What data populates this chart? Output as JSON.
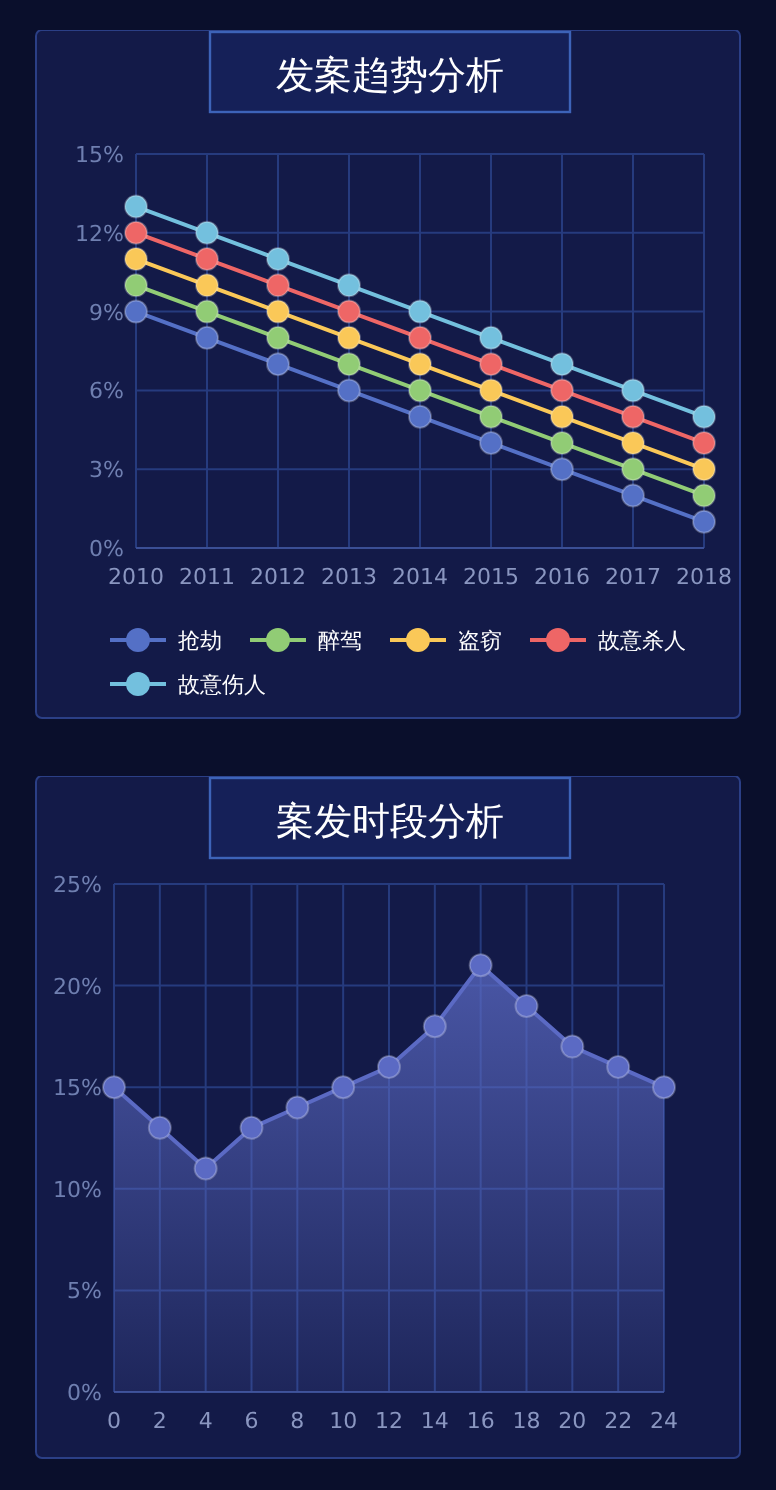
{
  "chart_data": [
    {
      "type": "line",
      "title": "发案趋势分析",
      "categories": [
        "2010",
        "2011",
        "2012",
        "2013",
        "2014",
        "2015",
        "2016",
        "2017",
        "2018"
      ],
      "series": [
        {
          "name": "抢劫",
          "color": "#5470c6",
          "values": [
            9,
            8,
            7,
            6,
            5,
            4,
            3,
            2,
            1
          ]
        },
        {
          "name": "醉驾",
          "color": "#91cc75",
          "values": [
            10,
            9,
            8,
            7,
            6,
            5,
            4,
            3,
            2
          ]
        },
        {
          "name": "盗窃",
          "color": "#fac858",
          "values": [
            11,
            10,
            9,
            8,
            7,
            6,
            5,
            4,
            3
          ]
        },
        {
          "name": "故意杀人",
          "color": "#ee6666",
          "values": [
            12,
            11,
            10,
            9,
            8,
            7,
            6,
            5,
            4
          ]
        },
        {
          "name": "故意伤人",
          "color": "#73c0de",
          "values": [
            13,
            12,
            11,
            10,
            9,
            8,
            7,
            6,
            5
          ]
        }
      ],
      "ylim": [
        0,
        15
      ],
      "yticks": [
        {
          "value": 0,
          "label": "0%"
        },
        {
          "value": 3,
          "label": "3%"
        },
        {
          "value": 6,
          "label": "6%"
        },
        {
          "value": 9,
          "label": "9%"
        },
        {
          "value": 12,
          "label": "12%"
        },
        {
          "value": 15,
          "label": "15%"
        }
      ],
      "grid": true,
      "legend": "bottom",
      "marker": "circle",
      "line_style": "solid"
    },
    {
      "type": "area",
      "title": "案发时段分析",
      "x": [
        0,
        2,
        4,
        6,
        8,
        10,
        12,
        14,
        16,
        18,
        20,
        22,
        24
      ],
      "series": [
        {
          "color": "#5b6ac4",
          "values": [
            15,
            13,
            11,
            13,
            14,
            15,
            16,
            18,
            21,
            19,
            17,
            16,
            15
          ]
        }
      ],
      "xlim": [
        0,
        24
      ],
      "xticks": [
        0,
        2,
        4,
        6,
        8,
        10,
        12,
        14,
        16,
        18,
        20,
        22,
        24
      ],
      "ylim": [
        0,
        25
      ],
      "yticks": [
        {
          "value": 0,
          "label": "0%"
        },
        {
          "value": 5,
          "label": "5%"
        },
        {
          "value": 10,
          "label": "10%"
        },
        {
          "value": 15,
          "label": "15%"
        },
        {
          "value": 20,
          "label": "20%"
        },
        {
          "value": 25,
          "label": "25%"
        }
      ],
      "grid": true,
      "marker": "circle",
      "line_style": "solid"
    }
  ]
}
